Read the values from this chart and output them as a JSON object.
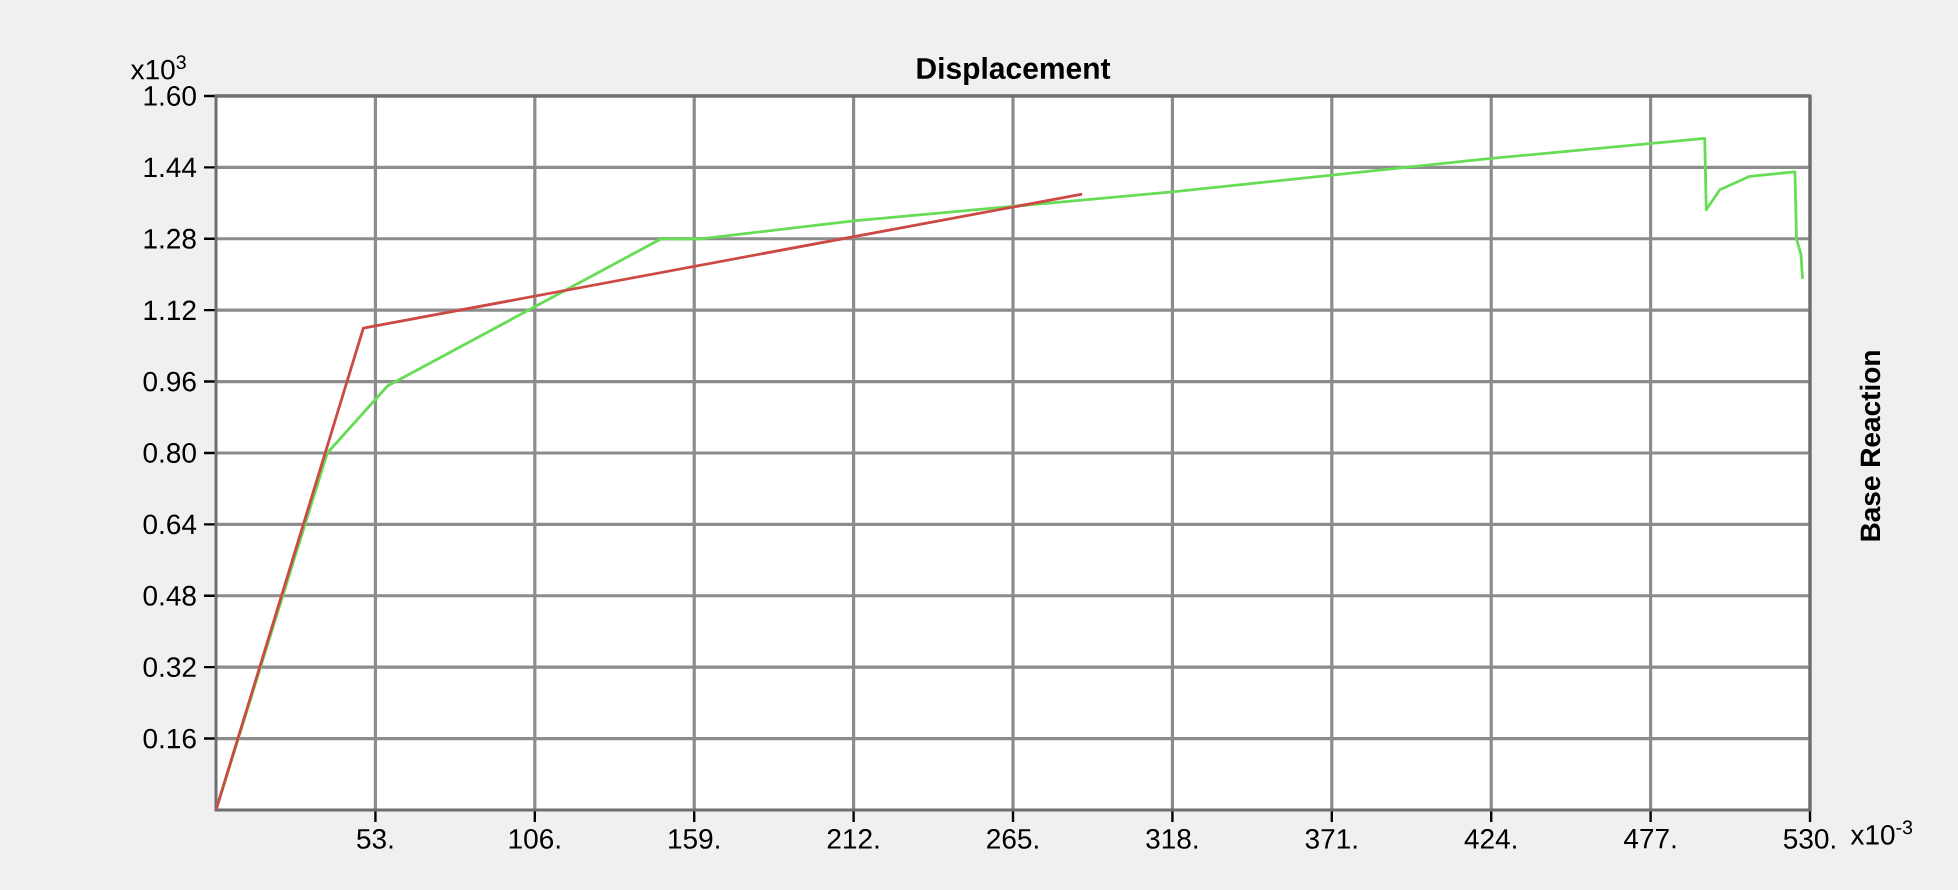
{
  "chart_data": {
    "type": "line",
    "title": "Displacement",
    "ylabel": "Base Reaction",
    "annotations": [
      "x10$^{3}$",
      "x10$^{-3}$"
    ],
    "xlim": [
      0,
      530
    ],
    "ylim": [
      0,
      1.6
    ],
    "xticks": [
      {
        "value": 53,
        "label": "53."
      },
      {
        "value": 106,
        "label": "106."
      },
      {
        "value": 159,
        "label": "159."
      },
      {
        "value": 212,
        "label": "212."
      },
      {
        "value": 265,
        "label": "265."
      },
      {
        "value": 318,
        "label": "318."
      },
      {
        "value": 371,
        "label": "371."
      },
      {
        "value": 424,
        "label": "424."
      },
      {
        "value": 477,
        "label": "477."
      },
      {
        "value": 530,
        "label": "530."
      }
    ],
    "yticks": [
      0.16,
      0.32,
      0.48,
      0.64,
      {
        "value": 0.8,
        "label": "0.80"
      },
      0.96,
      1.12,
      1.28,
      1.44,
      {
        "value": 1.6,
        "label": "1.60"
      }
    ],
    "grid": true,
    "series": [
      {
        "color": "#66dd55",
        "x": [
          0,
          37,
          57,
          148,
          161,
          212,
          318,
          424,
          495,
          495.5,
          500,
          510,
          525,
          525.5,
          527,
          527.5
        ],
        "values": [
          0,
          0.8,
          0.95,
          1.28,
          1.28,
          1.32,
          1.385,
          1.46,
          1.505,
          1.345,
          1.39,
          1.42,
          1.43,
          1.28,
          1.245,
          1.19
        ]
      },
      {
        "color": "#cc4a44",
        "x": [
          0,
          49,
          288
        ],
        "values": [
          0,
          1.08,
          1.38
        ]
      }
    ]
  }
}
